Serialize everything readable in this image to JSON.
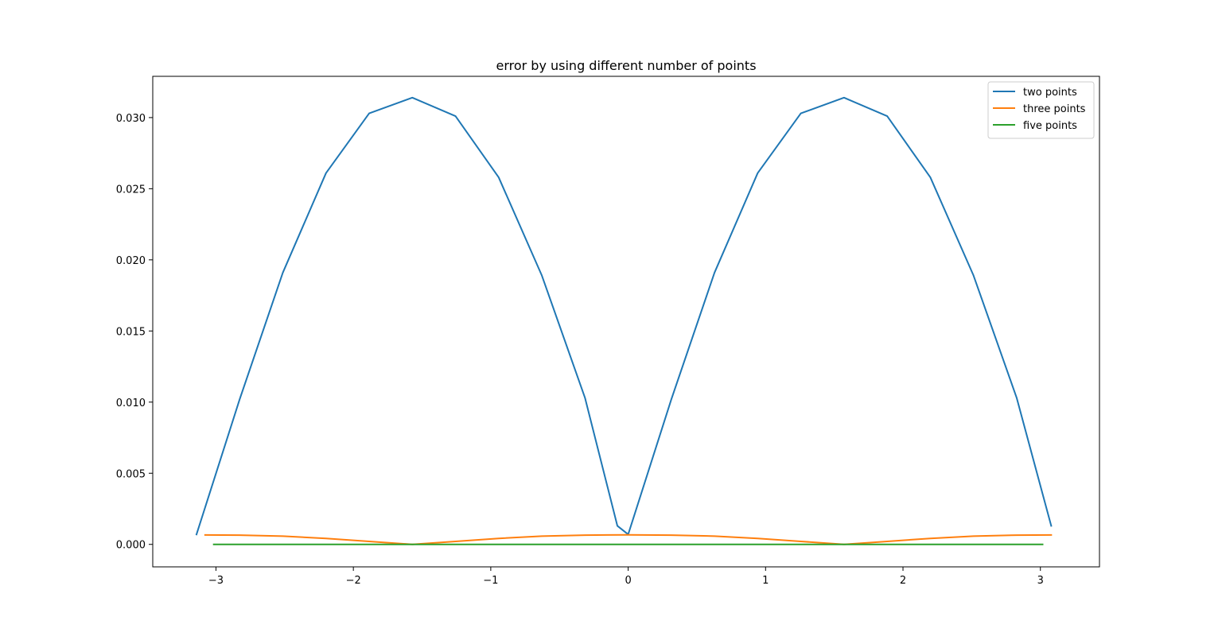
{
  "chart_data": {
    "type": "line",
    "title": "error by using different number of points",
    "xlabel": "",
    "ylabel": "",
    "xlim": [
      -3.46,
      3.43
    ],
    "ylim": [
      -0.00158,
      0.0329
    ],
    "x_ticks": [
      -3,
      -2,
      -1,
      0,
      1,
      2,
      3
    ],
    "x_tick_labels": [
      "−3",
      "−2",
      "−1",
      "0",
      "1",
      "2",
      "3"
    ],
    "y_ticks": [
      0.0,
      0.005,
      0.01,
      0.015,
      0.02,
      0.025,
      0.03
    ],
    "y_tick_labels": [
      "0.000",
      "0.005",
      "0.010",
      "0.015",
      "0.020",
      "0.025",
      "0.030"
    ],
    "grid": false,
    "legend_position": "top-right",
    "series": [
      {
        "name": "two points",
        "color": "#1f77b4",
        "x": [
          -3.1416,
          -2.8274,
          -2.5133,
          -2.1991,
          -1.885,
          -1.5708,
          -1.2566,
          -0.9425,
          -0.6283,
          -0.3142,
          -0.0785,
          0.0,
          0.3142,
          0.6283,
          0.9425,
          1.2566,
          1.5708,
          1.885,
          2.1991,
          2.5133,
          2.8274,
          3.0788
        ],
        "y": [
          0.0007,
          0.0102,
          0.0191,
          0.0261,
          0.0303,
          0.0314,
          0.0301,
          0.0258,
          0.0189,
          0.0103,
          0.0013,
          0.0007,
          0.0102,
          0.0191,
          0.0261,
          0.0303,
          0.0314,
          0.0301,
          0.0258,
          0.0189,
          0.0103,
          0.0013
        ]
      },
      {
        "name": "three points",
        "color": "#ff7f0e",
        "x": [
          -3.0788,
          -2.8274,
          -2.5133,
          -2.1991,
          -1.885,
          -1.5708,
          -1.2566,
          -0.9425,
          -0.6283,
          -0.3142,
          0.0,
          0.3142,
          0.6283,
          0.9425,
          1.2566,
          1.5708,
          1.885,
          2.1991,
          2.5133,
          2.8274,
          3.0788
        ],
        "y": [
          0.00066,
          0.00065,
          0.00058,
          0.00042,
          0.00021,
          0.0,
          0.00021,
          0.00042,
          0.00058,
          0.00065,
          0.00067,
          0.00065,
          0.00058,
          0.00042,
          0.00021,
          0.0,
          0.00021,
          0.00042,
          0.00058,
          0.00065,
          0.00066
        ]
      },
      {
        "name": "five points",
        "color": "#2ca02c",
        "x": [
          -3.0159,
          -2.0,
          -1.0,
          0.0,
          1.0,
          2.0,
          3.0159
        ],
        "y": [
          0.0,
          0.0,
          0.0,
          0.0,
          0.0,
          0.0,
          0.0
        ]
      }
    ]
  }
}
